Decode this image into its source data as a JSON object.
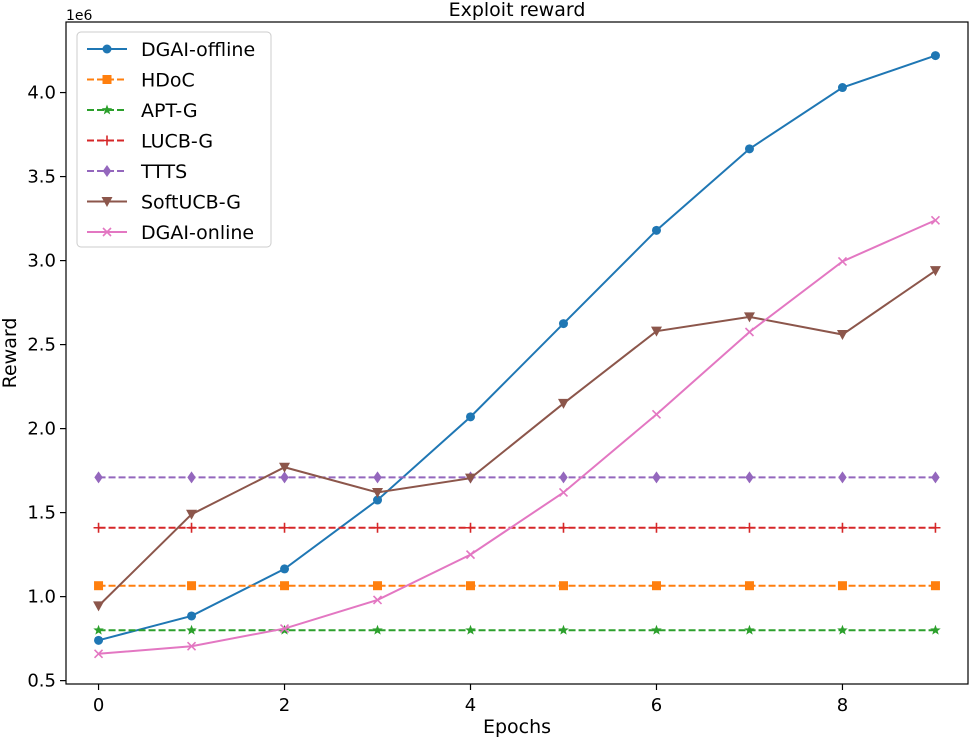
{
  "chart_data": {
    "type": "line",
    "title": "Exploit reward",
    "xlabel": "Epochs",
    "ylabel": "Reward",
    "y_offset_label": "1e6",
    "x": [
      0,
      1,
      2,
      3,
      4,
      5,
      6,
      7,
      8,
      9
    ],
    "xlim": [
      -0.35,
      9.35
    ],
    "ylim": [
      0.48,
      4.42
    ],
    "x_ticks": [
      0,
      2,
      4,
      6,
      8
    ],
    "y_ticks": [
      0.5,
      1.0,
      1.5,
      2.0,
      2.5,
      3.0,
      3.5,
      4.0
    ],
    "x_tick_labels": [
      "0",
      "2",
      "4",
      "6",
      "8"
    ],
    "y_tick_labels": [
      "0.5",
      "1.0",
      "1.5",
      "2.0",
      "2.5",
      "3.0",
      "3.5",
      "4.0"
    ],
    "grid": false,
    "legend_position": "upper-left",
    "series": [
      {
        "name": "DGAI-offline",
        "color": "#1f77b4",
        "dash": "solid",
        "marker": "circle",
        "values": [
          0.74,
          0.885,
          1.165,
          1.575,
          2.07,
          2.625,
          3.18,
          3.665,
          4.03,
          4.22
        ]
      },
      {
        "name": "HDoC",
        "color": "#ff7f0e",
        "dash": "dashed",
        "marker": "square",
        "values": [
          1.065,
          1.065,
          1.065,
          1.065,
          1.065,
          1.065,
          1.065,
          1.065,
          1.065,
          1.065
        ]
      },
      {
        "name": "APT-G",
        "color": "#2ca02c",
        "dash": "dashed",
        "marker": "star",
        "values": [
          0.8,
          0.8,
          0.8,
          0.8,
          0.8,
          0.8,
          0.8,
          0.8,
          0.8,
          0.8
        ]
      },
      {
        "name": "LUCB-G",
        "color": "#d62728",
        "dash": "dashed",
        "marker": "plus",
        "values": [
          1.41,
          1.41,
          1.41,
          1.41,
          1.41,
          1.41,
          1.41,
          1.41,
          1.41,
          1.41
        ]
      },
      {
        "name": "TTTS",
        "color": "#9467bd",
        "dash": "dashed",
        "marker": "diamond",
        "values": [
          1.71,
          1.71,
          1.71,
          1.71,
          1.71,
          1.71,
          1.71,
          1.71,
          1.71,
          1.71
        ]
      },
      {
        "name": "SoftUCB-G",
        "color": "#8c564b",
        "dash": "solid",
        "marker": "triangle-down",
        "values": [
          0.945,
          1.49,
          1.77,
          1.62,
          1.705,
          2.15,
          2.58,
          2.665,
          2.56,
          2.94
        ]
      },
      {
        "name": "DGAI-online",
        "color": "#e377c2",
        "dash": "solid",
        "marker": "x",
        "values": [
          0.66,
          0.705,
          0.81,
          0.98,
          1.25,
          1.62,
          2.085,
          2.575,
          2.995,
          3.24
        ]
      }
    ]
  }
}
